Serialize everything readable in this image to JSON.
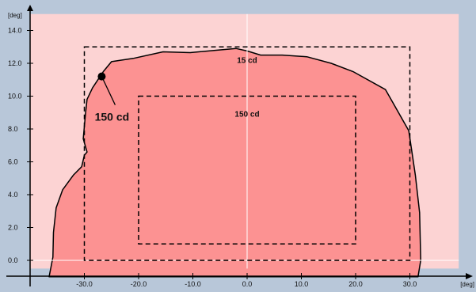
{
  "chart_data": {
    "type": "area",
    "colors": {
      "background": "#b8c7d9",
      "plot_area": "#fcd3d3",
      "light_pattern": "#fc9292",
      "outline": "#000000",
      "gridline": "#ffffff"
    },
    "axes": {
      "x_unit": "[deg]",
      "y_unit": "[deg]",
      "xlim": [
        -40,
        39
      ],
      "ylim": [
        -0.5,
        15
      ],
      "x_ticks": [
        -30,
        -20,
        -10,
        0,
        10,
        20,
        30
      ],
      "x_tick_labels": [
        "-30.0",
        "-20.0",
        "-10.0",
        "0.0",
        "10.0",
        "20.0",
        "30.0"
      ],
      "y_ticks": [
        0,
        2,
        4,
        6,
        8,
        10,
        12,
        14
      ],
      "y_tick_labels": [
        "0.0",
        "2.0",
        "4.0",
        "6.0",
        "8.0",
        "10.0",
        "12.0",
        "14.0"
      ],
      "grid": "zero-lines"
    },
    "pattern_boundary": {
      "x": [
        -36.5,
        -35.8,
        -35.7,
        -35.2,
        -34.0,
        -32.0,
        -30.5,
        -30.0,
        -29.5,
        -30.2,
        -29.8,
        -29.5,
        -28.5,
        -27.5,
        -26.5,
        -25.0,
        -21.0,
        -15.5,
        -10.5,
        -5.5,
        -2.0,
        0.0,
        2.5,
        6.5,
        11.0,
        15.5,
        19.5,
        25.5,
        29.8,
        31.0,
        31.8,
        32.0,
        31.5,
        -36.5
      ],
      "y": [
        -1,
        0.2,
        1.7,
        3.2,
        4.3,
        5.2,
        5.7,
        6.4,
        6.6,
        7.4,
        8.9,
        9.8,
        10.5,
        11.0,
        11.5,
        12.1,
        12.3,
        12.7,
        12.65,
        12.8,
        12.9,
        12.75,
        12.5,
        12.5,
        12.4,
        12.0,
        11.5,
        10.4,
        7.9,
        5.2,
        2.9,
        0.0,
        -1,
        -1
      ]
    },
    "zones": [
      {
        "label": "15 cd",
        "x_range": [
          -30,
          30
        ],
        "y_range": [
          0,
          13
        ]
      },
      {
        "label": "150 cd",
        "x_range": [
          -20,
          20
        ],
        "y_range": [
          1,
          10
        ]
      }
    ],
    "annotations": [
      {
        "label": "150 cd",
        "point": [
          -26.8,
          11.2
        ]
      }
    ]
  }
}
